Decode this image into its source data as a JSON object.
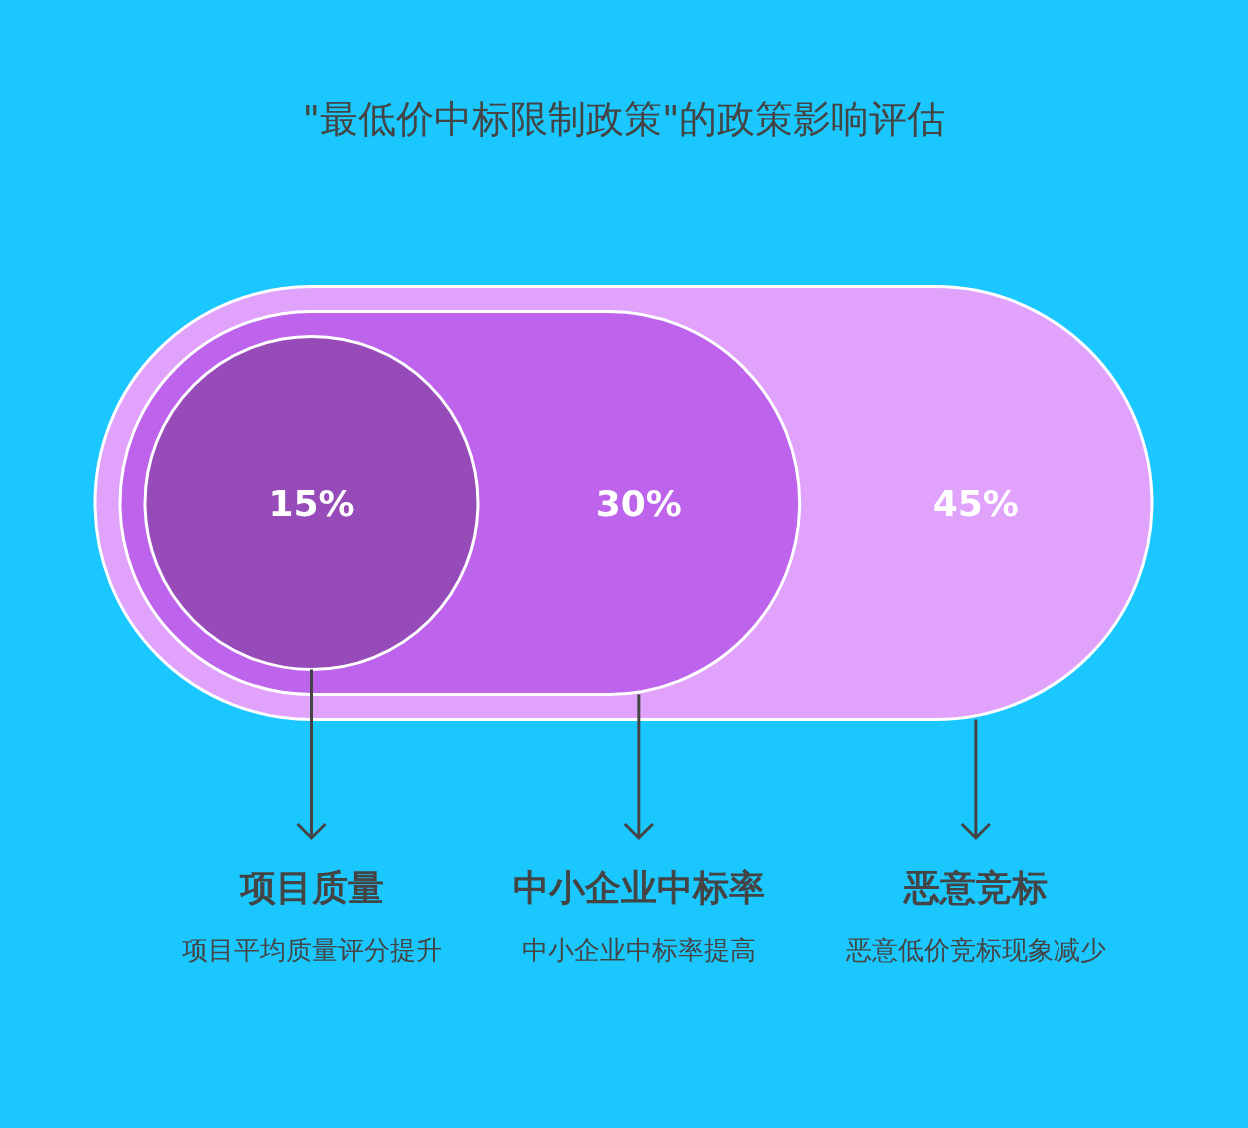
{
  "chart_data": {
    "type": "other",
    "title": "\"最低价中标限制政策\"的政策影响评估",
    "categories": [
      "项目质量",
      "中小企业中标率",
      "恶意竞标"
    ],
    "values": [
      15,
      30,
      45
    ],
    "value_labels": [
      "15%",
      "30%",
      "45%"
    ],
    "colors": [
      "#964bb8",
      "#bd63ec",
      "#e0a2fb"
    ],
    "annotations": [
      "项目平均质量评分提升",
      "中小企业中标率提高",
      "恶意低价竞标现象减少"
    ]
  }
}
